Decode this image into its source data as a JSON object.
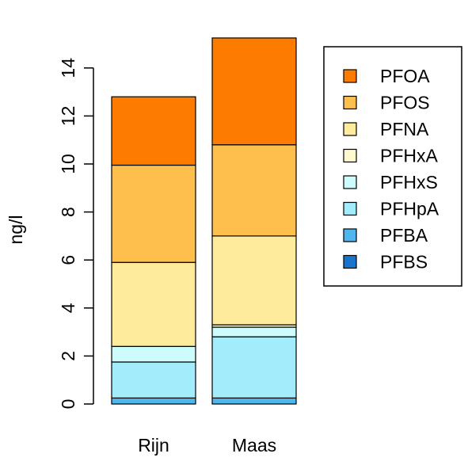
{
  "chart_data": {
    "type": "bar",
    "stacked": true,
    "categories": [
      "Rijn",
      "Maas"
    ],
    "series": [
      {
        "name": "PFBS",
        "color": "#1874cd",
        "values": [
          0.0,
          0.0
        ]
      },
      {
        "name": "PFBA",
        "color": "#4fb7ee",
        "values": [
          0.25,
          0.25
        ]
      },
      {
        "name": "PFHpA",
        "color": "#a3ecfb",
        "values": [
          1.5,
          2.55
        ]
      },
      {
        "name": "PFHxS",
        "color": "#ccfcfc",
        "values": [
          0.65,
          0.4
        ]
      },
      {
        "name": "PFHxA",
        "color": "#fffacc",
        "values": [
          0.0,
          0.1
        ]
      },
      {
        "name": "PFNA",
        "color": "#feeb9b",
        "values": [
          3.5,
          3.7
        ]
      },
      {
        "name": "PFOS",
        "color": "#febf4d",
        "values": [
          4.05,
          3.8
        ]
      },
      {
        "name": "PFOA",
        "color": "#fd7c00",
        "values": [
          2.85,
          4.45
        ]
      }
    ],
    "legend_order": [
      "PFOA",
      "PFOS",
      "PFNA",
      "PFHxA",
      "PFHxS",
      "PFHpA",
      "PFBA",
      "PFBS"
    ],
    "ylabel": "ng/l",
    "xlabel": "",
    "title": "",
    "ylim": [
      0,
      15.3
    ],
    "yticks": [
      0,
      2,
      4,
      6,
      8,
      10,
      12,
      14
    ],
    "ytick_labels": [
      "0",
      "2",
      "4",
      "6",
      "8",
      "10",
      "12",
      "14"
    ],
    "grid": false,
    "legend_position": "right"
  }
}
